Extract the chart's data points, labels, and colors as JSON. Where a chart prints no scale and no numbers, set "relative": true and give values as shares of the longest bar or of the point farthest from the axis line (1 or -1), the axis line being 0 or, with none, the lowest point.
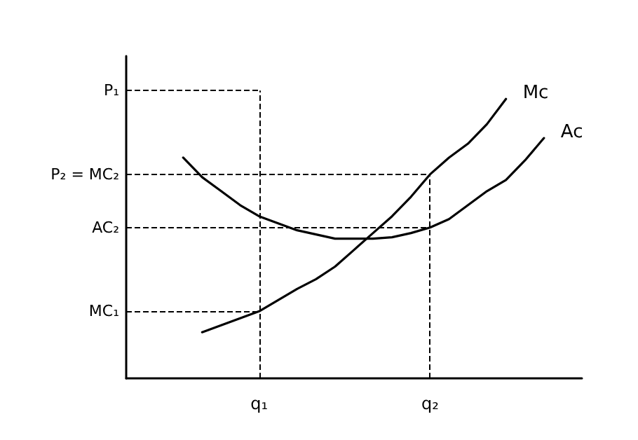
{
  "chart_data": {
    "type": "line",
    "relative": true,
    "marker": "none",
    "line_style": "solid",
    "grid": false,
    "legend": false,
    "tick_labels": "x",
    "categories": [
      null,
      null,
      null,
      null,
      null,
      null,
      null,
      "q₁",
      null,
      null,
      null,
      null,
      null,
      null,
      null,
      null,
      "q₂",
      null,
      null,
      null,
      null,
      null,
      null,
      null,
      null
    ],
    "series": [
      {
        "name": "Mc",
        "color": "#000000",
        "values": [
          null,
          null,
          null,
          null,
          0.165,
          0.19,
          0.215,
          0.24,
          0.28,
          0.32,
          0.355,
          0.4,
          0.46,
          0.52,
          0.58,
          0.65,
          0.73,
          0.79,
          0.84,
          0.91,
          1.0,
          null,
          null,
          null,
          null
        ]
      },
      {
        "name": "Ac",
        "color": "#000000",
        "values": [
          null,
          null,
          null,
          0.79,
          0.72,
          0.67,
          0.62,
          0.58,
          0.555,
          0.53,
          0.515,
          0.5,
          0.5,
          0.5,
          0.505,
          0.52,
          0.54,
          0.57,
          0.62,
          0.67,
          0.71,
          0.78,
          0.86,
          null,
          null
        ]
      }
    ],
    "ref_lines": [
      {
        "axis": "y",
        "value": 1.03,
        "label": "P₁",
        "color": "#000000",
        "line_style": "dashed"
      },
      {
        "axis": "y",
        "value": 0.73,
        "label": "P₂ = MC₂",
        "color": "#000000",
        "line_style": "dashed"
      },
      {
        "axis": "y",
        "value": 0.54,
        "label": "AC₂",
        "color": "#000000",
        "line_style": "dashed"
      },
      {
        "axis": "y",
        "value": 0.24,
        "label": "MC₁",
        "color": "#000000",
        "line_style": "dashed"
      },
      {
        "axis": "x",
        "value": "q₁",
        "color": "#000000",
        "line_style": "dashed"
      },
      {
        "axis": "x",
        "value": "q₂",
        "color": "#000000",
        "line_style": "dashed"
      }
    ]
  }
}
